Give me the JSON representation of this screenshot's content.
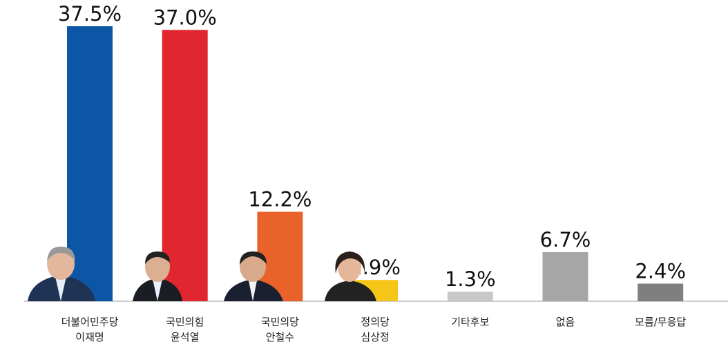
{
  "chart_data": {
    "type": "bar",
    "categories": [
      "더불어민주당\n이재명",
      "국민의힘\n윤석열",
      "국민의당\n안철수",
      "정의당\n심상정",
      "기타후보",
      "없음",
      "모름/무응답"
    ],
    "values": [
      37.5,
      37.0,
      12.2,
      2.9,
      1.3,
      6.7,
      2.4
    ],
    "value_labels": [
      "37.5%",
      "37.0%",
      "12.2%",
      "2.9%",
      "1.3%",
      "6.7%",
      "2.4%"
    ],
    "colors": [
      "#0d56a6",
      "#e0262e",
      "#e8622a",
      "#f5c518",
      "#c8c8c8",
      "#a6a6a6",
      "#7f7f7f"
    ],
    "ylim": [
      0,
      37.5
    ]
  }
}
